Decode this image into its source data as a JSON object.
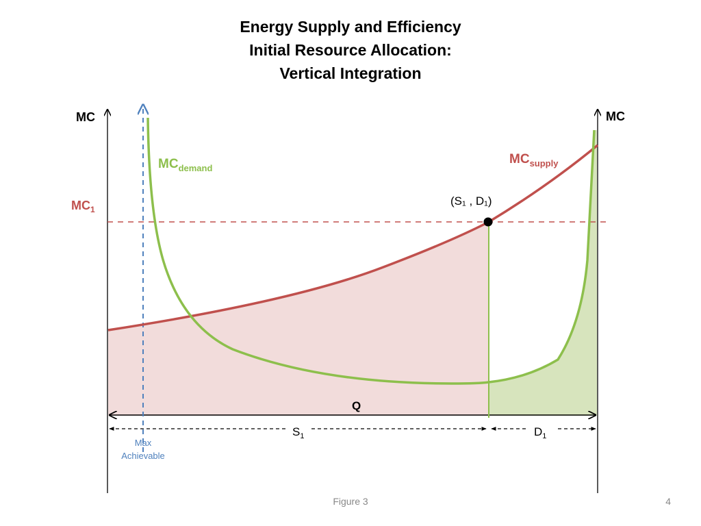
{
  "slide": {
    "title_lines": [
      "Energy Supply and Efficiency",
      "Initial Resource Allocation:",
      "Vertical Integration"
    ],
    "caption": "Figure 3",
    "page_number": "4"
  },
  "diagram": {
    "left_axis_label": "MC",
    "right_axis_label": "MC",
    "mc1_label": "MC",
    "mc1_sub": "1",
    "mc_demand_label": "MC",
    "mc_demand_sub": "demand",
    "mc_supply_label": "MC",
    "mc_supply_sub": "supply",
    "point_label": "(S₁ , D₁)",
    "q_label": "Q",
    "s1_label": "S",
    "s1_sub": "1",
    "d1_label": "D",
    "d1_sub": "1",
    "max_achievable_line1": "Max",
    "max_achievable_line2": "Achievable",
    "colors": {
      "supply": "#c0504d",
      "demand": "#8dbf4c",
      "supply_fill": "#f2dcdb",
      "demand_fill": "#d7e4bd",
      "max_line": "#4f81bd",
      "text": "#000000"
    }
  }
}
